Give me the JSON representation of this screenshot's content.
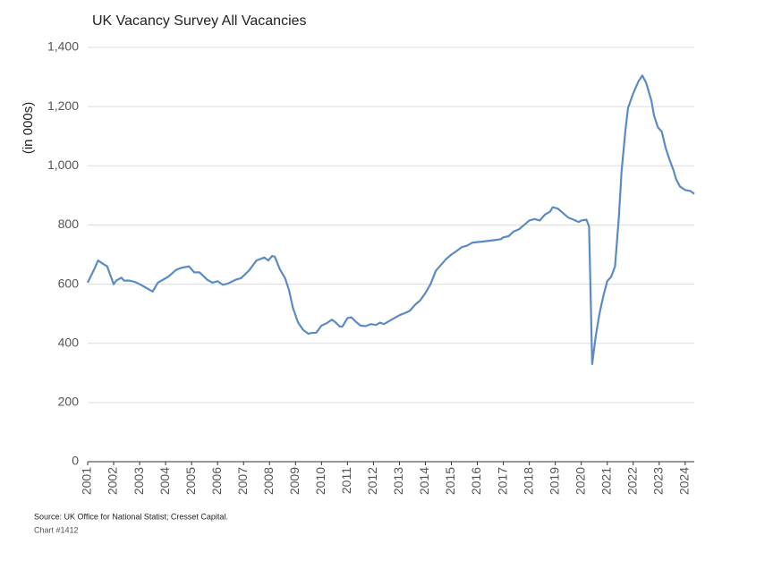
{
  "chart_data": {
    "type": "line",
    "title": "UK Vacancy Survey All Vacancies",
    "y_label": "(in 000s)",
    "source": "Source: UK Office for National Statist; Cresset Capital.",
    "note": "Chart #1412",
    "color": "#5b8bc4",
    "grid": true,
    "xlim": [
      2001,
      2024.35
    ],
    "xticks": [
      2001,
      2002,
      2003,
      2004,
      2005,
      2006,
      2007,
      2008,
      2009,
      2010,
      2011,
      2012,
      2013,
      2014,
      2015,
      2016,
      2017,
      2018,
      2019,
      2020,
      2021,
      2022,
      2023,
      2024
    ],
    "ylim": [
      0,
      1400
    ],
    "yticks": [
      0,
      200,
      400,
      600,
      800,
      {
        "value": 1000,
        "label": "1,000"
      },
      {
        "value": 1200,
        "label": "1,200"
      },
      {
        "value": 1400,
        "label": "1,400"
      }
    ],
    "x": [
      2001.0,
      2001.25,
      2001.4,
      2001.6,
      2001.75,
      2002.0,
      2002.1,
      2002.3,
      2002.4,
      2002.6,
      2002.8,
      2003.0,
      2003.2,
      2003.4,
      2003.5,
      2003.7,
      2003.9,
      2004.1,
      2004.4,
      2004.6,
      2004.9,
      2005.1,
      2005.3,
      2005.6,
      2005.8,
      2006.0,
      2006.2,
      2006.4,
      2006.7,
      2006.9,
      2007.2,
      2007.5,
      2007.8,
      2007.95,
      2008.1,
      2008.2,
      2008.4,
      2008.6,
      2008.75,
      2008.9,
      2009.1,
      2009.3,
      2009.5,
      2009.6,
      2009.8,
      2010.0,
      2010.2,
      2010.4,
      2010.55,
      2010.7,
      2010.8,
      2011.0,
      2011.15,
      2011.3,
      2011.5,
      2011.7,
      2011.9,
      2012.1,
      2012.25,
      2012.4,
      2012.6,
      2012.8,
      2013.0,
      2013.2,
      2013.4,
      2013.6,
      2013.8,
      2014.0,
      2014.2,
      2014.4,
      2014.6,
      2014.8,
      2015.0,
      2015.2,
      2015.4,
      2015.6,
      2015.8,
      2016.0,
      2016.3,
      2016.6,
      2016.9,
      2017.0,
      2017.2,
      2017.4,
      2017.6,
      2017.8,
      2018.0,
      2018.2,
      2018.4,
      2018.6,
      2018.8,
      2018.9,
      2019.1,
      2019.3,
      2019.5,
      2019.7,
      2019.9,
      2020.0,
      2020.2,
      2020.3,
      2020.42,
      2020.55,
      2020.7,
      2020.85,
      2021.0,
      2021.15,
      2021.3,
      2021.45,
      2021.55,
      2021.7,
      2021.8,
      2022.0,
      2022.2,
      2022.35,
      2022.5,
      2022.7,
      2022.8,
      2022.95,
      2023.1,
      2023.25,
      2023.4,
      2023.55,
      2023.65,
      2023.8,
      2024.0,
      2024.2,
      2024.35
    ],
    "values": [
      605,
      650,
      680,
      668,
      660,
      600,
      612,
      622,
      612,
      612,
      608,
      600,
      590,
      580,
      575,
      605,
      615,
      625,
      648,
      655,
      660,
      640,
      640,
      615,
      605,
      610,
      598,
      602,
      615,
      620,
      645,
      680,
      690,
      680,
      695,
      693,
      650,
      620,
      580,
      520,
      470,
      445,
      432,
      435,
      436,
      460,
      468,
      480,
      470,
      457,
      456,
      485,
      488,
      475,
      460,
      458,
      465,
      462,
      470,
      465,
      475,
      485,
      495,
      502,
      510,
      530,
      545,
      570,
      600,
      645,
      665,
      685,
      700,
      712,
      725,
      730,
      740,
      742,
      745,
      748,
      752,
      758,
      762,
      778,
      785,
      800,
      815,
      820,
      815,
      835,
      845,
      860,
      855,
      840,
      825,
      818,
      810,
      815,
      818,
      795,
      330,
      420,
      500,
      560,
      610,
      625,
      660,
      830,
      980,
      1120,
      1195,
      1245,
      1285,
      1305,
      1280,
      1220,
      1170,
      1130,
      1115,
      1060,
      1020,
      985,
      955,
      930,
      918,
      915,
      905
    ]
  }
}
